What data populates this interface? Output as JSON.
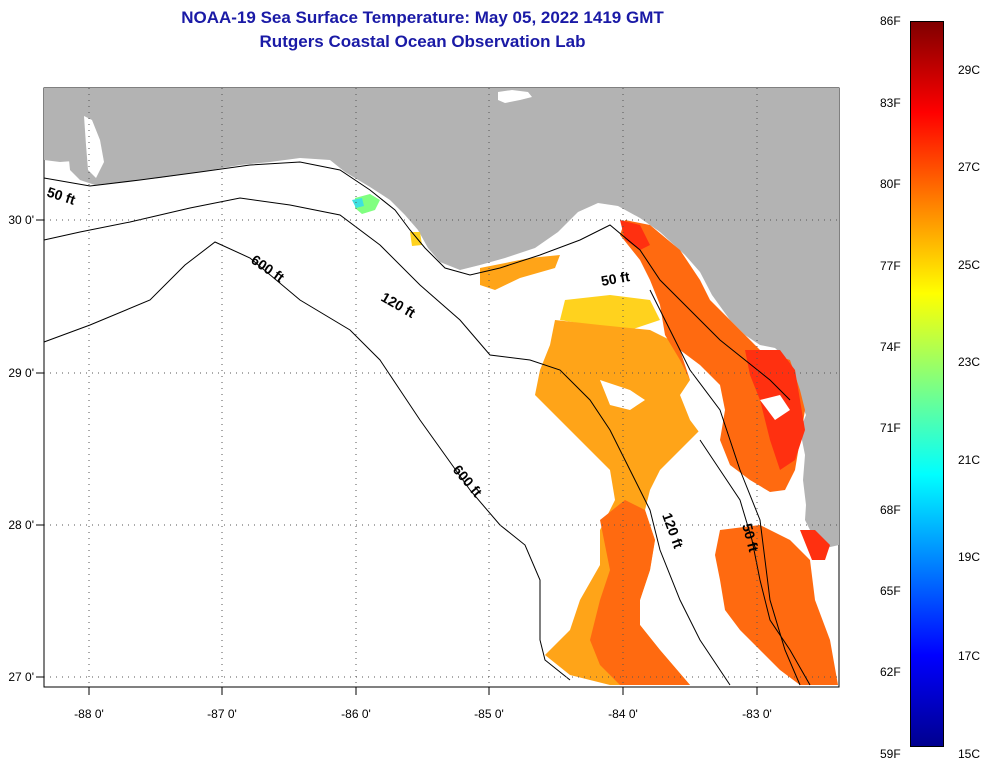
{
  "header": {
    "title": "NOAA-19 Sea Surface Temperature:  May 05, 2022 1419 GMT",
    "subtitle": "Rutgers Coastal Ocean Observation Lab"
  },
  "map": {
    "lon_labels": [
      "-88 0'",
      "-87 0'",
      "-86 0'",
      "-85 0'",
      "-84 0'",
      "-83 0'"
    ],
    "lat_labels": [
      "30 0'",
      "29 0'",
      "28 0'",
      "27 0'"
    ],
    "contour_labels": {
      "c50_west": "50 ft",
      "c50_big_bend": "50 ft",
      "c50_south": "50 ft",
      "c120_north": "120 ft",
      "c120_south": "120 ft",
      "c600_north": "600 ft",
      "c600_south": "600 ft"
    },
    "colors": {
      "land": "#b3b3b3",
      "ocean_nodata": "#ffffff",
      "warm": "#ff6a10",
      "warmer": "#ff3010",
      "mid": "#ffa418",
      "cool": "#ffd21e"
    }
  },
  "colorbar": {
    "fahrenheit": [
      "86F",
      "83F",
      "80F",
      "77F",
      "74F",
      "71F",
      "68F",
      "65F",
      "62F",
      "59F"
    ],
    "celsius": [
      "29C",
      "27C",
      "25C",
      "23C",
      "21C",
      "19C",
      "17C",
      "15C"
    ],
    "gradient": [
      "#00008f",
      "#0000ff",
      "#0080ff",
      "#00ffff",
      "#80ff80",
      "#ffff00",
      "#ff8000",
      "#ff0000",
      "#800000"
    ]
  }
}
